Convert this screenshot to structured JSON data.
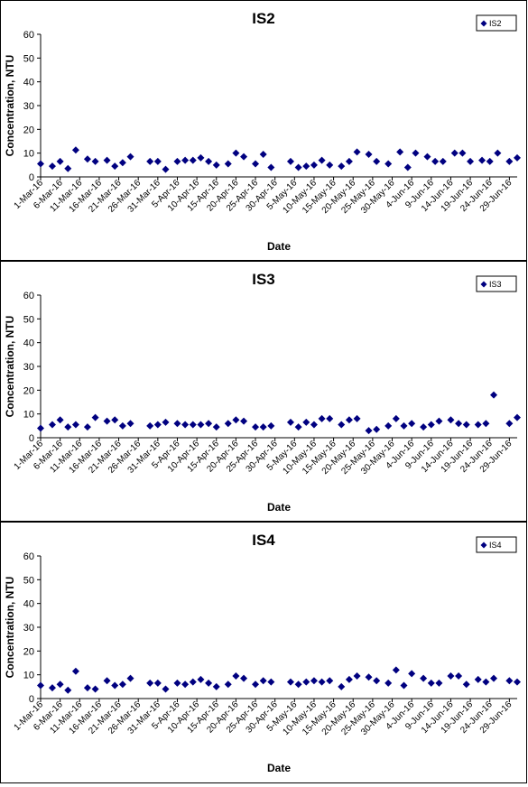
{
  "chart_data": [
    {
      "type": "scatter",
      "title": "IS2",
      "xlabel": "Date",
      "ylabel": "Concentration, NTU",
      "ylim": [
        0,
        60
      ],
      "yticks": [
        "0",
        "10",
        "20",
        "30",
        "40",
        "50",
        "60"
      ],
      "xticks": [
        "1-Mar-16",
        "6-Mar-16",
        "11-Mar-16",
        "16-Mar-16",
        "21-Mar-16",
        "26-Mar-16",
        "31-Mar-16",
        "5-Apr-16",
        "10-Apr-16",
        "15-Apr-16",
        "20-Apr-16",
        "25-Apr-16",
        "30-Apr-16",
        "5-May-16",
        "10-May-16",
        "15-May-16",
        "20-May-16",
        "25-May-16",
        "30-May-16",
        "4-Jun-16",
        "9-Jun-16",
        "14-Jun-16",
        "19-Jun-16",
        "24-Jun-16",
        "29-Jun-16"
      ],
      "legend": "top-right",
      "grid": false,
      "marker_color": "#000080",
      "series": [
        {
          "name": "IS2",
          "points": [
            [
              "2016-03-01",
              5.5
            ],
            [
              "2016-03-04",
              4.5
            ],
            [
              "2016-03-06",
              6.5
            ],
            [
              "2016-03-08",
              3.5
            ],
            [
              "2016-03-10",
              11.3
            ],
            [
              "2016-03-13",
              7.5
            ],
            [
              "2016-03-15",
              6.5
            ],
            [
              "2016-03-18",
              7.0
            ],
            [
              "2016-03-20",
              4.5
            ],
            [
              "2016-03-22",
              6.0
            ],
            [
              "2016-03-24",
              8.5
            ],
            [
              "2016-03-29",
              6.5
            ],
            [
              "2016-03-31",
              6.5
            ],
            [
              "2016-04-02",
              3.2
            ],
            [
              "2016-04-05",
              6.5
            ],
            [
              "2016-04-07",
              7.0
            ],
            [
              "2016-04-09",
              7.0
            ],
            [
              "2016-04-11",
              8.0
            ],
            [
              "2016-04-13",
              6.5
            ],
            [
              "2016-04-15",
              5.0
            ],
            [
              "2016-04-18",
              5.5
            ],
            [
              "2016-04-20",
              10.0
            ],
            [
              "2016-04-22",
              8.5
            ],
            [
              "2016-04-25",
              5.5
            ],
            [
              "2016-04-27",
              9.5
            ],
            [
              "2016-04-29",
              4.0
            ],
            [
              "2016-05-04",
              6.5
            ],
            [
              "2016-05-06",
              4.0
            ],
            [
              "2016-05-08",
              4.5
            ],
            [
              "2016-05-10",
              5.0
            ],
            [
              "2016-05-12",
              7.0
            ],
            [
              "2016-05-14",
              5.0
            ],
            [
              "2016-05-17",
              4.5
            ],
            [
              "2016-05-19",
              6.5
            ],
            [
              "2016-05-21",
              10.5
            ],
            [
              "2016-05-24",
              9.5
            ],
            [
              "2016-05-26",
              6.5
            ],
            [
              "2016-05-29",
              5.5
            ],
            [
              "2016-06-01",
              10.5
            ],
            [
              "2016-06-03",
              4.0
            ],
            [
              "2016-06-05",
              10.0
            ],
            [
              "2016-06-08",
              8.5
            ],
            [
              "2016-06-10",
              6.5
            ],
            [
              "2016-06-12",
              6.5
            ],
            [
              "2016-06-15",
              10.0
            ],
            [
              "2016-06-17",
              10.0
            ],
            [
              "2016-06-19",
              6.5
            ],
            [
              "2016-06-22",
              7.0
            ],
            [
              "2016-06-24",
              6.5
            ],
            [
              "2016-06-26",
              10.0
            ],
            [
              "2016-06-29",
              6.5
            ],
            [
              "2016-07-01",
              8.0
            ]
          ]
        }
      ]
    },
    {
      "type": "scatter",
      "title": "IS3",
      "xlabel": "Date",
      "ylabel": "Concentration, NTU",
      "ylim": [
        0,
        60
      ],
      "yticks": [
        "0",
        "10",
        "20",
        "30",
        "40",
        "50",
        "60"
      ],
      "xticks": [
        "1-Mar-16",
        "6-Mar-16",
        "11-Mar-16",
        "16-Mar-16",
        "21-Mar-16",
        "26-Mar-16",
        "31-Mar-16",
        "5-Apr-16",
        "10-Apr-16",
        "15-Apr-16",
        "20-Apr-16",
        "25-Apr-16",
        "30-Apr-16",
        "5-May-16",
        "10-May-16",
        "15-May-16",
        "20-May-16",
        "25-May-16",
        "30-May-16",
        "4-Jun-16",
        "9-Jun-16",
        "14-Jun-16",
        "19-Jun-16",
        "24-Jun-16",
        "29-Jun-16"
      ],
      "legend": "top-right",
      "grid": false,
      "marker_color": "#000080",
      "series": [
        {
          "name": "IS3",
          "points": [
            [
              "2016-03-01",
              4.0
            ],
            [
              "2016-03-04",
              5.5
            ],
            [
              "2016-03-06",
              7.5
            ],
            [
              "2016-03-08",
              4.5
            ],
            [
              "2016-03-10",
              5.5
            ],
            [
              "2016-03-13",
              4.5
            ],
            [
              "2016-03-15",
              8.5
            ],
            [
              "2016-03-18",
              7.0
            ],
            [
              "2016-03-20",
              7.5
            ],
            [
              "2016-03-22",
              5.0
            ],
            [
              "2016-03-24",
              6.0
            ],
            [
              "2016-03-29",
              5.0
            ],
            [
              "2016-03-31",
              5.5
            ],
            [
              "2016-04-02",
              6.5
            ],
            [
              "2016-04-05",
              6.0
            ],
            [
              "2016-04-07",
              5.5
            ],
            [
              "2016-04-09",
              5.5
            ],
            [
              "2016-04-11",
              5.5
            ],
            [
              "2016-04-13",
              6.0
            ],
            [
              "2016-04-15",
              4.5
            ],
            [
              "2016-04-18",
              6.0
            ],
            [
              "2016-04-20",
              7.5
            ],
            [
              "2016-04-22",
              7.0
            ],
            [
              "2016-04-25",
              4.5
            ],
            [
              "2016-04-27",
              4.5
            ],
            [
              "2016-04-29",
              5.0
            ],
            [
              "2016-05-04",
              6.5
            ],
            [
              "2016-05-06",
              4.5
            ],
            [
              "2016-05-08",
              6.5
            ],
            [
              "2016-05-10",
              5.5
            ],
            [
              "2016-05-12",
              8.0
            ],
            [
              "2016-05-14",
              8.0
            ],
            [
              "2016-05-17",
              5.5
            ],
            [
              "2016-05-19",
              7.5
            ],
            [
              "2016-05-21",
              8.0
            ],
            [
              "2016-05-24",
              3.0
            ],
            [
              "2016-05-26",
              3.5
            ],
            [
              "2016-05-29",
              5.0
            ],
            [
              "2016-05-31",
              8.0
            ],
            [
              "2016-06-02",
              5.0
            ],
            [
              "2016-06-04",
              6.0
            ],
            [
              "2016-06-07",
              4.5
            ],
            [
              "2016-06-09",
              5.5
            ],
            [
              "2016-06-11",
              7.0
            ],
            [
              "2016-06-14",
              7.5
            ],
            [
              "2016-06-16",
              6.0
            ],
            [
              "2016-06-18",
              5.5
            ],
            [
              "2016-06-21",
              5.5
            ],
            [
              "2016-06-23",
              6.0
            ],
            [
              "2016-06-25",
              18.0
            ],
            [
              "2016-06-29",
              6.0
            ],
            [
              "2016-07-01",
              8.5
            ]
          ]
        }
      ]
    },
    {
      "type": "scatter",
      "title": "IS4",
      "xlabel": "Date",
      "ylabel": "Concentration, NTU",
      "ylim": [
        0,
        60
      ],
      "yticks": [
        "0",
        "10",
        "20",
        "30",
        "40",
        "50",
        "60"
      ],
      "xticks": [
        "1-Mar-16",
        "6-Mar-16",
        "11-Mar-16",
        "16-Mar-16",
        "21-Mar-16",
        "26-Mar-16",
        "31-Mar-16",
        "5-Apr-16",
        "10-Apr-16",
        "15-Apr-16",
        "20-Apr-16",
        "25-Apr-16",
        "30-Apr-16",
        "5-May-16",
        "10-May-16",
        "15-May-16",
        "20-May-16",
        "25-May-16",
        "30-May-16",
        "4-Jun-16",
        "9-Jun-16",
        "14-Jun-16",
        "19-Jun-16",
        "24-Jun-16",
        "29-Jun-16"
      ],
      "legend": "top-right",
      "grid": false,
      "marker_color": "#000080",
      "series": [
        {
          "name": "IS4",
          "points": [
            [
              "2016-03-01",
              5.5
            ],
            [
              "2016-03-04",
              4.5
            ],
            [
              "2016-03-06",
              6.0
            ],
            [
              "2016-03-08",
              3.5
            ],
            [
              "2016-03-10",
              11.5
            ],
            [
              "2016-03-13",
              4.5
            ],
            [
              "2016-03-15",
              4.0
            ],
            [
              "2016-03-18",
              7.5
            ],
            [
              "2016-03-20",
              5.5
            ],
            [
              "2016-03-22",
              6.0
            ],
            [
              "2016-03-24",
              8.5
            ],
            [
              "2016-03-29",
              6.5
            ],
            [
              "2016-03-31",
              6.5
            ],
            [
              "2016-04-02",
              4.0
            ],
            [
              "2016-04-05",
              6.5
            ],
            [
              "2016-04-07",
              6.0
            ],
            [
              "2016-04-09",
              7.0
            ],
            [
              "2016-04-11",
              8.0
            ],
            [
              "2016-04-13",
              6.5
            ],
            [
              "2016-04-15",
              5.0
            ],
            [
              "2016-04-18",
              6.0
            ],
            [
              "2016-04-20",
              9.5
            ],
            [
              "2016-04-22",
              8.5
            ],
            [
              "2016-04-25",
              6.0
            ],
            [
              "2016-04-27",
              7.5
            ],
            [
              "2016-04-29",
              7.0
            ],
            [
              "2016-05-04",
              7.0
            ],
            [
              "2016-05-06",
              6.0
            ],
            [
              "2016-05-08",
              7.0
            ],
            [
              "2016-05-10",
              7.5
            ],
            [
              "2016-05-12",
              7.0
            ],
            [
              "2016-05-14",
              7.5
            ],
            [
              "2016-05-17",
              5.0
            ],
            [
              "2016-05-19",
              8.0
            ],
            [
              "2016-05-21",
              9.5
            ],
            [
              "2016-05-24",
              9.0
            ],
            [
              "2016-05-26",
              7.5
            ],
            [
              "2016-05-29",
              6.5
            ],
            [
              "2016-05-31",
              12.0
            ],
            [
              "2016-06-02",
              5.5
            ],
            [
              "2016-06-04",
              10.5
            ],
            [
              "2016-06-07",
              8.5
            ],
            [
              "2016-06-09",
              6.5
            ],
            [
              "2016-06-11",
              6.5
            ],
            [
              "2016-06-14",
              9.5
            ],
            [
              "2016-06-16",
              9.5
            ],
            [
              "2016-06-18",
              6.0
            ],
            [
              "2016-06-21",
              8.0
            ],
            [
              "2016-06-23",
              7.0
            ],
            [
              "2016-06-25",
              8.5
            ],
            [
              "2016-06-29",
              7.5
            ],
            [
              "2016-07-01",
              7.0
            ]
          ]
        }
      ]
    }
  ]
}
